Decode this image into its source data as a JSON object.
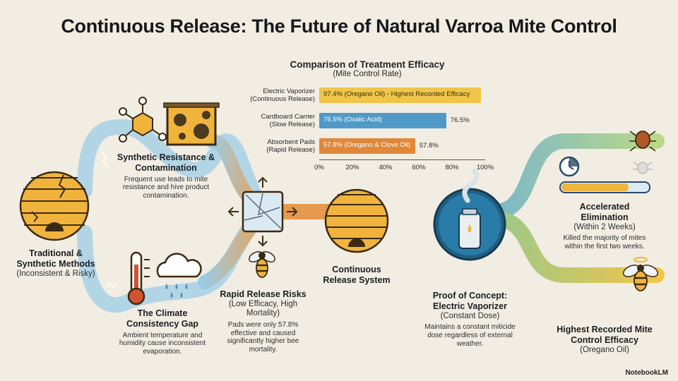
{
  "title": "Continuous Release: The Future of Natural Varroa Mite Control",
  "nodes": {
    "traditional": {
      "heading": "Traditional & Synthetic Methods",
      "sub": "(Inconsistent & Risky)"
    },
    "resistance": {
      "heading": "Synthetic Resistance & Contamination",
      "desc": "Frequent use leads to mite resistance and hive product contamination."
    },
    "climate": {
      "heading": "The Climate Consistency Gap",
      "desc": "Ambient temperature and humidity cause inconsistent evaporation."
    },
    "rapid": {
      "heading": "Rapid Release Risks",
      "sub": "(Low Efficacy, High Mortality)",
      "desc": "Pads were only 57.8% effective and caused significantly higher bee mortality."
    },
    "continuous": {
      "heading": "Continuous Release System"
    },
    "proof": {
      "heading": "Proof of Concept: Electric Vaporizer",
      "sub": "(Constant Dose)",
      "desc": "Maintains a constant miticide dose regardless of external weather."
    },
    "accelerated": {
      "heading": "Accelerated Elimination",
      "sub": "(Within 2 Weeks)",
      "desc": "Killed the majority of mites within the first two weeks."
    },
    "highest": {
      "heading": "Highest Recorded Mite Control Efficacy",
      "sub": "(Oregano Oil)"
    }
  },
  "chart_data": {
    "type": "bar",
    "orientation": "horizontal",
    "title": "Comparison of Treatment Efficacy",
    "subtitle": "(Mite Control Rate)",
    "categories": [
      "Electric Vaporizer (Continuous Release)",
      "Cardboard Carrier (Slow Release)",
      "Absorbent Pads (Rapid Release)"
    ],
    "category_lines": [
      [
        "Electric Vaporizer",
        "(Continuous Release)"
      ],
      [
        "Cardboard Carrier",
        "(Slow Release)"
      ],
      [
        "Absorbent Pads",
        "(Rapid Release)"
      ]
    ],
    "values": [
      97.4,
      76.5,
      57.8
    ],
    "bar_labels": [
      "97.4% (Oregano Oil) - Highest Recorded Efficacy",
      "76.5% (Oxalic Acid)",
      "57.8% (Oregano & Clove Oil)"
    ],
    "value_labels": [
      "",
      "76.5%",
      "57.8%"
    ],
    "colors": [
      "#efc54a",
      "#4f9ac8",
      "#e0883a"
    ],
    "xlim": [
      0,
      100
    ],
    "xticks": [
      "0%",
      "20%",
      "40%",
      "60%",
      "80%",
      "100%"
    ]
  },
  "brand": "NotebookLM",
  "colors": {
    "flow_blue": "#8fc3de",
    "flow_orange": "#e59a4e",
    "flow_green": "#a9cf7c",
    "honey": "#efb53c"
  }
}
